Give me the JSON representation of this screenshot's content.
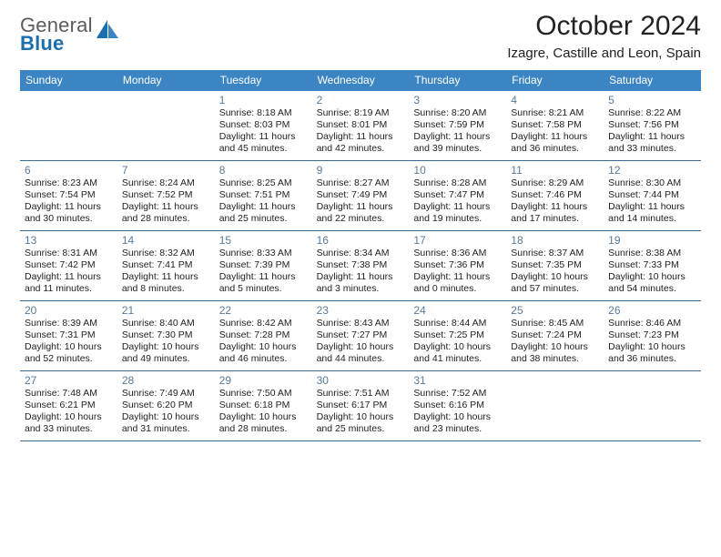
{
  "logo": {
    "textGray": "General",
    "textBlue": "Blue"
  },
  "title": "October 2024",
  "location": "Izagre, Castille and Leon, Spain",
  "colors": {
    "headerBar": "#3b85c5",
    "headerText": "#ffffff",
    "rowDivider": "#3b6a93",
    "dayNum": "#5a7a96",
    "body": "#222222",
    "logoBlue": "#1a6fb0",
    "logoGray": "#5b5b5b",
    "background": "#ffffff"
  },
  "dayHeaders": [
    "Sunday",
    "Monday",
    "Tuesday",
    "Wednesday",
    "Thursday",
    "Friday",
    "Saturday"
  ],
  "grid": {
    "rows": 5,
    "cols": 7,
    "firstDayColIndex": 2,
    "lastDayNumber": 31
  },
  "typography": {
    "title_fontsize": 30,
    "location_fontsize": 15,
    "dayheader_fontsize": 12,
    "daynum_fontsize": 12,
    "body_fontsize": 10.5,
    "body_lineheight": 13
  },
  "weeks": [
    [
      null,
      null,
      {
        "n": "1",
        "sunrise": "Sunrise: 8:18 AM",
        "sunset": "Sunset: 8:03 PM",
        "d1": "Daylight: 11 hours",
        "d2": "and 45 minutes."
      },
      {
        "n": "2",
        "sunrise": "Sunrise: 8:19 AM",
        "sunset": "Sunset: 8:01 PM",
        "d1": "Daylight: 11 hours",
        "d2": "and 42 minutes."
      },
      {
        "n": "3",
        "sunrise": "Sunrise: 8:20 AM",
        "sunset": "Sunset: 7:59 PM",
        "d1": "Daylight: 11 hours",
        "d2": "and 39 minutes."
      },
      {
        "n": "4",
        "sunrise": "Sunrise: 8:21 AM",
        "sunset": "Sunset: 7:58 PM",
        "d1": "Daylight: 11 hours",
        "d2": "and 36 minutes."
      },
      {
        "n": "5",
        "sunrise": "Sunrise: 8:22 AM",
        "sunset": "Sunset: 7:56 PM",
        "d1": "Daylight: 11 hours",
        "d2": "and 33 minutes."
      }
    ],
    [
      {
        "n": "6",
        "sunrise": "Sunrise: 8:23 AM",
        "sunset": "Sunset: 7:54 PM",
        "d1": "Daylight: 11 hours",
        "d2": "and 30 minutes."
      },
      {
        "n": "7",
        "sunrise": "Sunrise: 8:24 AM",
        "sunset": "Sunset: 7:52 PM",
        "d1": "Daylight: 11 hours",
        "d2": "and 28 minutes."
      },
      {
        "n": "8",
        "sunrise": "Sunrise: 8:25 AM",
        "sunset": "Sunset: 7:51 PM",
        "d1": "Daylight: 11 hours",
        "d2": "and 25 minutes."
      },
      {
        "n": "9",
        "sunrise": "Sunrise: 8:27 AM",
        "sunset": "Sunset: 7:49 PM",
        "d1": "Daylight: 11 hours",
        "d2": "and 22 minutes."
      },
      {
        "n": "10",
        "sunrise": "Sunrise: 8:28 AM",
        "sunset": "Sunset: 7:47 PM",
        "d1": "Daylight: 11 hours",
        "d2": "and 19 minutes."
      },
      {
        "n": "11",
        "sunrise": "Sunrise: 8:29 AM",
        "sunset": "Sunset: 7:46 PM",
        "d1": "Daylight: 11 hours",
        "d2": "and 17 minutes."
      },
      {
        "n": "12",
        "sunrise": "Sunrise: 8:30 AM",
        "sunset": "Sunset: 7:44 PM",
        "d1": "Daylight: 11 hours",
        "d2": "and 14 minutes."
      }
    ],
    [
      {
        "n": "13",
        "sunrise": "Sunrise: 8:31 AM",
        "sunset": "Sunset: 7:42 PM",
        "d1": "Daylight: 11 hours",
        "d2": "and 11 minutes."
      },
      {
        "n": "14",
        "sunrise": "Sunrise: 8:32 AM",
        "sunset": "Sunset: 7:41 PM",
        "d1": "Daylight: 11 hours",
        "d2": "and 8 minutes."
      },
      {
        "n": "15",
        "sunrise": "Sunrise: 8:33 AM",
        "sunset": "Sunset: 7:39 PM",
        "d1": "Daylight: 11 hours",
        "d2": "and 5 minutes."
      },
      {
        "n": "16",
        "sunrise": "Sunrise: 8:34 AM",
        "sunset": "Sunset: 7:38 PM",
        "d1": "Daylight: 11 hours",
        "d2": "and 3 minutes."
      },
      {
        "n": "17",
        "sunrise": "Sunrise: 8:36 AM",
        "sunset": "Sunset: 7:36 PM",
        "d1": "Daylight: 11 hours",
        "d2": "and 0 minutes."
      },
      {
        "n": "18",
        "sunrise": "Sunrise: 8:37 AM",
        "sunset": "Sunset: 7:35 PM",
        "d1": "Daylight: 10 hours",
        "d2": "and 57 minutes."
      },
      {
        "n": "19",
        "sunrise": "Sunrise: 8:38 AM",
        "sunset": "Sunset: 7:33 PM",
        "d1": "Daylight: 10 hours",
        "d2": "and 54 minutes."
      }
    ],
    [
      {
        "n": "20",
        "sunrise": "Sunrise: 8:39 AM",
        "sunset": "Sunset: 7:31 PM",
        "d1": "Daylight: 10 hours",
        "d2": "and 52 minutes."
      },
      {
        "n": "21",
        "sunrise": "Sunrise: 8:40 AM",
        "sunset": "Sunset: 7:30 PM",
        "d1": "Daylight: 10 hours",
        "d2": "and 49 minutes."
      },
      {
        "n": "22",
        "sunrise": "Sunrise: 8:42 AM",
        "sunset": "Sunset: 7:28 PM",
        "d1": "Daylight: 10 hours",
        "d2": "and 46 minutes."
      },
      {
        "n": "23",
        "sunrise": "Sunrise: 8:43 AM",
        "sunset": "Sunset: 7:27 PM",
        "d1": "Daylight: 10 hours",
        "d2": "and 44 minutes."
      },
      {
        "n": "24",
        "sunrise": "Sunrise: 8:44 AM",
        "sunset": "Sunset: 7:25 PM",
        "d1": "Daylight: 10 hours",
        "d2": "and 41 minutes."
      },
      {
        "n": "25",
        "sunrise": "Sunrise: 8:45 AM",
        "sunset": "Sunset: 7:24 PM",
        "d1": "Daylight: 10 hours",
        "d2": "and 38 minutes."
      },
      {
        "n": "26",
        "sunrise": "Sunrise: 8:46 AM",
        "sunset": "Sunset: 7:23 PM",
        "d1": "Daylight: 10 hours",
        "d2": "and 36 minutes."
      }
    ],
    [
      {
        "n": "27",
        "sunrise": "Sunrise: 7:48 AM",
        "sunset": "Sunset: 6:21 PM",
        "d1": "Daylight: 10 hours",
        "d2": "and 33 minutes."
      },
      {
        "n": "28",
        "sunrise": "Sunrise: 7:49 AM",
        "sunset": "Sunset: 6:20 PM",
        "d1": "Daylight: 10 hours",
        "d2": "and 31 minutes."
      },
      {
        "n": "29",
        "sunrise": "Sunrise: 7:50 AM",
        "sunset": "Sunset: 6:18 PM",
        "d1": "Daylight: 10 hours",
        "d2": "and 28 minutes."
      },
      {
        "n": "30",
        "sunrise": "Sunrise: 7:51 AM",
        "sunset": "Sunset: 6:17 PM",
        "d1": "Daylight: 10 hours",
        "d2": "and 25 minutes."
      },
      {
        "n": "31",
        "sunrise": "Sunrise: 7:52 AM",
        "sunset": "Sunset: 6:16 PM",
        "d1": "Daylight: 10 hours",
        "d2": "and 23 minutes."
      },
      null,
      null
    ]
  ]
}
